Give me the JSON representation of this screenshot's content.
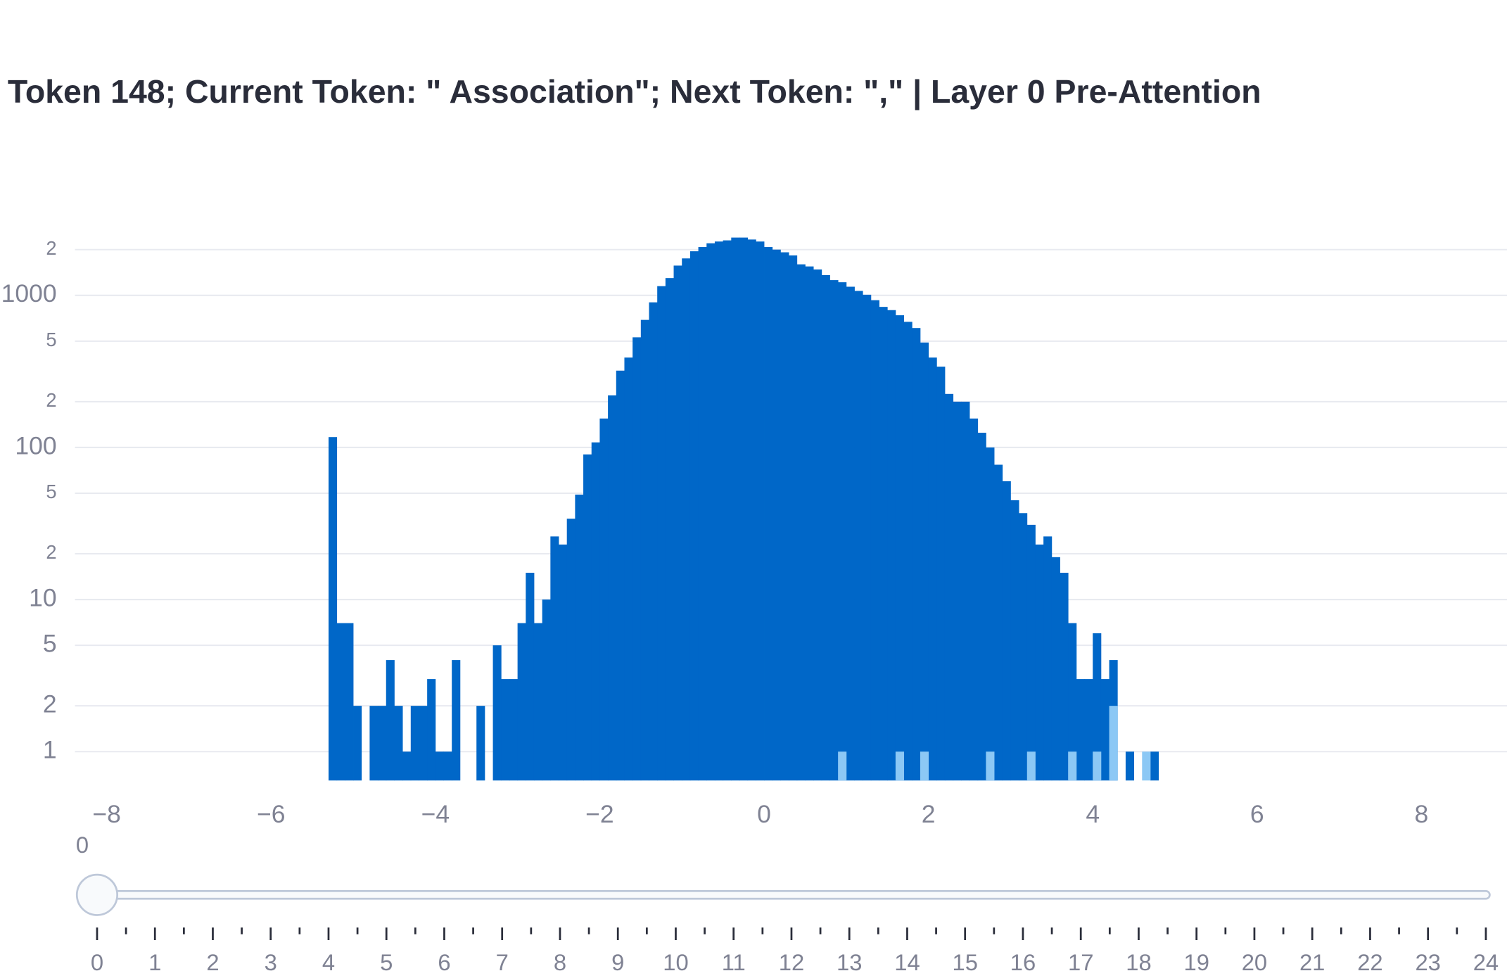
{
  "chart_data": {
    "type": "histogram",
    "title": "Token 148; Current Token: \" Association\"; Next Token: \",\" | Layer 0 Pre-Attention",
    "bins": [
      -5.3,
      -5.2,
      -5.1,
      -5.0,
      -4.9,
      -4.8,
      -4.7,
      -4.6,
      -4.5,
      -4.4,
      -4.3,
      -4.2,
      -4.1,
      -4.0,
      -3.9,
      -3.8,
      -3.7,
      -3.6,
      -3.5,
      -3.4,
      -3.3,
      -3.2,
      -3.1,
      -3.0,
      -2.9,
      -2.8,
      -2.7,
      -2.6,
      -2.5,
      -2.4,
      -2.3,
      -2.2,
      -2.1,
      -2.0,
      -1.9,
      -1.8,
      -1.7,
      -1.6,
      -1.5,
      -1.4,
      -1.3,
      -1.2,
      -1.1,
      -1.0,
      -0.9,
      -0.8,
      -0.7,
      -0.6,
      -0.5,
      -0.4,
      -0.3,
      -0.2,
      -0.1,
      0.0,
      0.1,
      0.2,
      0.3,
      0.4,
      0.5,
      0.6,
      0.7,
      0.8,
      0.9,
      1.0,
      1.1,
      1.2,
      1.3,
      1.4,
      1.5,
      1.6,
      1.7,
      1.8,
      1.9,
      2.0,
      2.1,
      2.2,
      2.3,
      2.4,
      2.5,
      2.6,
      2.7,
      2.8,
      2.9,
      3.0,
      3.1,
      3.2,
      3.3,
      3.4,
      3.5,
      3.6,
      3.7,
      3.8,
      3.9,
      4.0,
      4.1,
      4.2,
      4.3,
      4.4,
      4.5,
      4.6,
      4.7,
      4.8
    ],
    "series": [
      {
        "color": "#0067c8",
        "counts": [
          117,
          7,
          7,
          2,
          0,
          2,
          2,
          4,
          2,
          1,
          2,
          2,
          3,
          1,
          1,
          4,
          0,
          0,
          2,
          0,
          5,
          3,
          3,
          7,
          15,
          7,
          10,
          26,
          23,
          34,
          49,
          90,
          108,
          155,
          220,
          320,
          390,
          530,
          690,
          900,
          1150,
          1300,
          1570,
          1750,
          1950,
          2080,
          2200,
          2260,
          2300,
          2400,
          2400,
          2330,
          2260,
          2080,
          2000,
          1920,
          1830,
          1600,
          1550,
          1480,
          1360,
          1260,
          1220,
          1140,
          1070,
          1010,
          930,
          840,
          800,
          740,
          670,
          610,
          490,
          390,
          340,
          225,
          200,
          200,
          155,
          125,
          100,
          77,
          60,
          45,
          37,
          31,
          23,
          26,
          19,
          15,
          7,
          3,
          3,
          6,
          3,
          4,
          0,
          1,
          0,
          0,
          1
        ]
      },
      {
        "color": "#8cc8f5",
        "counts": [
          0,
          0,
          0,
          0,
          0,
          0,
          0,
          0,
          0,
          0,
          0,
          0,
          0,
          0,
          0,
          0,
          0,
          0,
          0,
          0,
          0,
          0,
          0,
          0,
          0,
          0,
          0,
          0,
          0,
          0,
          0,
          0,
          0,
          0,
          0,
          0,
          0,
          0,
          0,
          0,
          0,
          0,
          0,
          0,
          0,
          0,
          0,
          0,
          0,
          0,
          0,
          0,
          0,
          0,
          0,
          0,
          0,
          0,
          0,
          0,
          0,
          0,
          1,
          0,
          0,
          0,
          0,
          0,
          0,
          1,
          0,
          0,
          1,
          0,
          0,
          0,
          0,
          0,
          0,
          0,
          1,
          0,
          0,
          0,
          0,
          1,
          0,
          0,
          0,
          0,
          1,
          0,
          0,
          1,
          0,
          2,
          0,
          0,
          0,
          1,
          0
        ]
      }
    ],
    "log_y": true,
    "grid": true,
    "xlim": [
      -8.386,
      9.041
    ],
    "xticks": [
      {
        "value": -8,
        "label": "−8"
      },
      {
        "value": -6,
        "label": "−6"
      },
      {
        "value": -4,
        "label": "−4"
      },
      {
        "value": -2,
        "label": "−2"
      },
      0,
      2,
      4,
      6,
      8
    ],
    "ylim": [
      0.646,
      3080
    ],
    "yticks": [
      1,
      2,
      5,
      10,
      {
        "value": 20,
        "label": "2"
      },
      {
        "value": 50,
        "label": "5"
      },
      100,
      {
        "value": 200,
        "label": "2"
      },
      {
        "value": 500,
        "label": "5"
      },
      1000,
      {
        "value": 2000,
        "label": "2"
      }
    ]
  },
  "slider": {
    "value": 0,
    "steps": [
      0,
      1,
      2,
      3,
      4,
      5,
      6,
      7,
      8,
      9,
      10,
      11,
      12,
      13,
      14,
      15,
      16,
      17,
      18,
      19,
      20,
      21,
      22,
      23,
      24
    ]
  }
}
